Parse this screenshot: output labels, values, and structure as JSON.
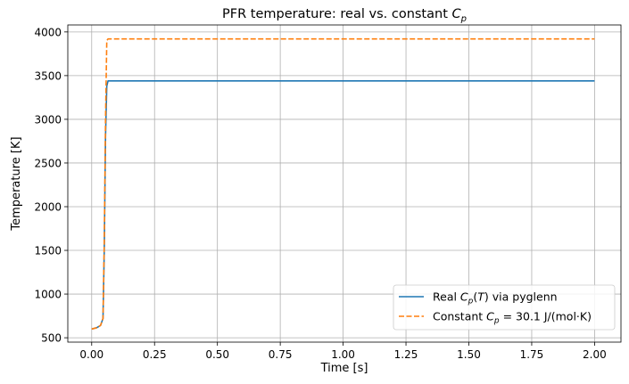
{
  "chart_data": {
    "type": "line",
    "title_main": "PFR temperature: real vs. constant ",
    "title_math": "C",
    "title_sub": "p",
    "xlabel": "Time [s]",
    "ylabel": "Temperature [K]",
    "xlim": [
      -0.095,
      2.105
    ],
    "ylim": [
      450,
      4080
    ],
    "x_ticks": [
      0.0,
      0.25,
      0.5,
      0.75,
      1.0,
      1.25,
      1.5,
      1.75,
      2.0
    ],
    "x_tick_labels": [
      "0.00",
      "0.25",
      "0.50",
      "0.75",
      "1.00",
      "1.25",
      "1.50",
      "1.75",
      "2.00"
    ],
    "y_ticks": [
      500,
      1000,
      1500,
      2000,
      2500,
      3000,
      3500,
      4000
    ],
    "y_tick_labels": [
      "500",
      "1000",
      "1500",
      "2000",
      "2500",
      "3000",
      "3500",
      "4000"
    ],
    "grid": true,
    "legend_position": "lower-right",
    "series": [
      {
        "legend_parts": [
          "Real ",
          "C",
          "p",
          "(",
          "T",
          ") via pyglenn"
        ],
        "color": "#1f77b4",
        "dash": "solid",
        "x": [
          0.0,
          0.02,
          0.035,
          0.045,
          0.05,
          0.055,
          0.06,
          0.065,
          0.1,
          0.5,
          1.0,
          1.5,
          2.0
        ],
        "y": [
          600,
          615,
          640,
          720,
          1500,
          2800,
          3380,
          3440,
          3440,
          3440,
          3440,
          3440,
          3440
        ]
      },
      {
        "legend_parts": [
          "Constant ",
          "C",
          "p",
          " = 30.1 J/(mol·K)"
        ],
        "color": "#ff7f0e",
        "dash": "dashed",
        "x": [
          0.0,
          0.02,
          0.035,
          0.045,
          0.05,
          0.055,
          0.06,
          0.065,
          0.1,
          0.5,
          1.0,
          1.5,
          2.0
        ],
        "y": [
          600,
          615,
          640,
          720,
          1600,
          3000,
          3900,
          3920,
          3920,
          3920,
          3920,
          3920,
          3920
        ]
      }
    ]
  }
}
